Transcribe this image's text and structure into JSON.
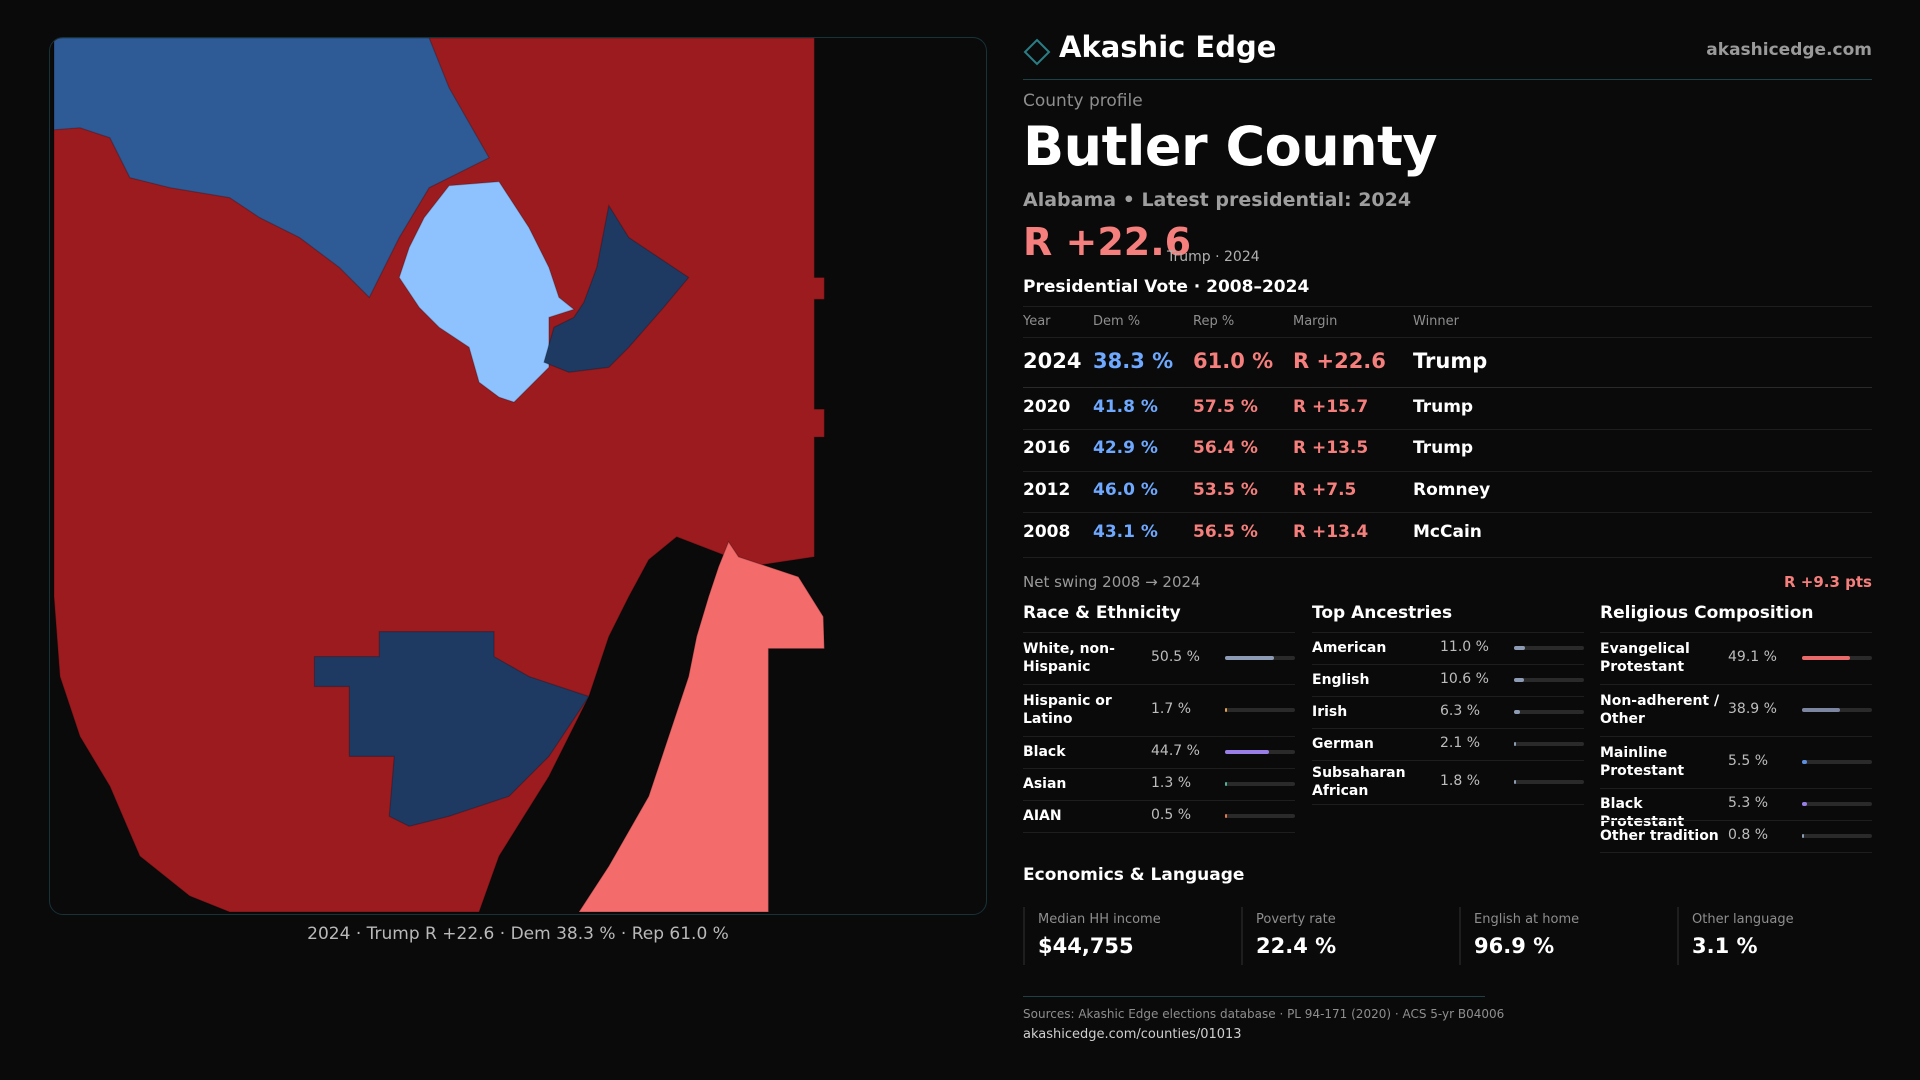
{
  "map": {
    "caption": "2024 · Trump R +22.6 · Dem 38.3 % · Rep 61.0 %",
    "colors": {
      "strong_rep": "#9b1b1f",
      "lean_rep": "#f46b6b",
      "strong_dem": "#1e3a63",
      "mid_dem": "#2e5a95",
      "lean_dem": "#8ec2ff",
      "frame_border": "#173238"
    }
  },
  "brand": {
    "name": "Akashic Edge",
    "url": "akashicedge.com",
    "logo_icon": "diamond-outline-icon",
    "accent": "#2a7d86"
  },
  "profile": {
    "eyebrow": "County profile",
    "county": "Butler County",
    "subtitle": "Alabama • Latest presidential: 2024",
    "margin": "R +22.6",
    "margin_note": "Trump · 2024"
  },
  "votes": {
    "heading": "Presidential Vote · 2008–2024",
    "columns": [
      "Year",
      "Dem %",
      "Rep %",
      "Margin",
      "Winner"
    ],
    "rows": [
      {
        "year": "2024",
        "dem": "38.3 %",
        "rep": "61.0 %",
        "margin": "R +22.6",
        "winner": "Trump"
      },
      {
        "year": "2020",
        "dem": "41.8 %",
        "rep": "57.5 %",
        "margin": "R +15.7",
        "winner": "Trump"
      },
      {
        "year": "2016",
        "dem": "42.9 %",
        "rep": "56.4 %",
        "margin": "R +13.5",
        "winner": "Trump"
      },
      {
        "year": "2012",
        "dem": "46.0 %",
        "rep": "53.5 %",
        "margin": "R +7.5",
        "winner": "Romney"
      },
      {
        "year": "2008",
        "dem": "43.1 %",
        "rep": "56.5 %",
        "margin": "R +13.4",
        "winner": "McCain"
      }
    ],
    "swing_label": "Net swing 2008 → 2024",
    "swing_value": "R +9.3 pts",
    "dem_color": "#6ea8ff",
    "rep_color": "#f47f7c"
  },
  "race": {
    "title": "Race & Ethnicity",
    "items": [
      {
        "label": "White, non-Hispanic",
        "value": "50.5 %",
        "fraction": 0.505,
        "color": "#8e9bb4"
      },
      {
        "label": "Hispanic or Latino",
        "value": "1.7 %",
        "fraction": 0.017,
        "color": "#e0a34a"
      },
      {
        "label": "Black",
        "value": "44.7 %",
        "fraction": 0.447,
        "color": "#9a7ee8"
      },
      {
        "label": "Asian",
        "value": "1.3 %",
        "fraction": 0.013,
        "color": "#4fb39a"
      },
      {
        "label": "AIAN",
        "value": "0.5 %",
        "fraction": 0.005,
        "color": "#e0784a"
      }
    ]
  },
  "ancestry": {
    "title": "Top Ancestries",
    "items": [
      {
        "label": "American",
        "value": "11.0 %",
        "fraction": 0.11,
        "color": "#8e9bb4"
      },
      {
        "label": "English",
        "value": "10.6 %",
        "fraction": 0.106,
        "color": "#8e9bb4"
      },
      {
        "label": "Irish",
        "value": "6.3 %",
        "fraction": 0.063,
        "color": "#8e9bb4"
      },
      {
        "label": "German",
        "value": "2.1 %",
        "fraction": 0.021,
        "color": "#8e9bb4"
      },
      {
        "label": "Subsaharan African",
        "value": "1.8 %",
        "fraction": 0.018,
        "color": "#8e9bb4"
      }
    ]
  },
  "religion": {
    "title": "Religious Composition",
    "items": [
      {
        "label": "Evangelical Protestant",
        "value": "49.1 %",
        "fraction": 0.491,
        "color": "#e86a6a"
      },
      {
        "label": "Non-adherent / Other",
        "value": "38.9 %",
        "fraction": 0.389,
        "color": "#7d86a0"
      },
      {
        "label": "Mainline Protestant",
        "value": "5.5 %",
        "fraction": 0.055,
        "color": "#5d8ee0"
      },
      {
        "label": "Black Protestant",
        "value": "5.3 %",
        "fraction": 0.053,
        "color": "#9a7ee8"
      },
      {
        "label": "Other tradition",
        "value": "0.8 %",
        "fraction": 0.008,
        "color": "#8e9bb4"
      }
    ]
  },
  "economics": {
    "title": "Economics & Language",
    "cards": [
      {
        "label": "Median HH income",
        "value": "$44,755"
      },
      {
        "label": "Poverty rate",
        "value": "22.4 %"
      },
      {
        "label": "English at home",
        "value": "96.9 %"
      },
      {
        "label": "Other language",
        "value": "3.1 %"
      }
    ]
  },
  "footer": {
    "sources": "Sources: Akashic Edge elections database · PL 94-171 (2020) · ACS 5-yr B04006",
    "url": "akashicedge.com/counties/01013"
  }
}
